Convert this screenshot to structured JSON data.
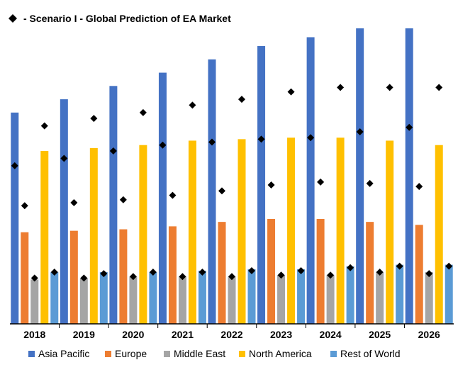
{
  "chart_data": {
    "type": "bar",
    "title": "- Scenario I - Global Prediction of EA Market",
    "categories": [
      "2018",
      "2019",
      "2020",
      "2021",
      "2022",
      "2023",
      "2024",
      "2025",
      "2026"
    ],
    "ylim": [
      0,
      100
    ],
    "grid": false,
    "legend_position": "bottom",
    "title_marker": "diamond",
    "series": [
      {
        "name": "Asia Pacific",
        "color": "#4472C4",
        "values": [
          71.5,
          76,
          80.5,
          85,
          89.5,
          94,
          97,
          100,
          100
        ]
      },
      {
        "name": "Europe",
        "color": "#ED7D31",
        "values": [
          31,
          31.5,
          32,
          33,
          34.5,
          35.5,
          35.5,
          34.5,
          33.5
        ]
      },
      {
        "name": "Middle East",
        "color": "#A5A5A5",
        "values": [
          15,
          15.5,
          16,
          16,
          16,
          16.5,
          16.5,
          17.5,
          17.5
        ]
      },
      {
        "name": "North America",
        "color": "#FFC000",
        "values": [
          58.5,
          59.5,
          60.5,
          62,
          62.5,
          63,
          63,
          62,
          60.5
        ]
      },
      {
        "name": "Rest of World",
        "color": "#5B9BD5",
        "values": [
          17.5,
          17.5,
          17.5,
          18,
          18.5,
          18.5,
          19.5,
          20,
          20
        ]
      }
    ],
    "markers": {
      "shape": "diamond",
      "color": "#000000",
      "values": [
        [
          53.5,
          40,
          15.5,
          67,
          17.5
        ],
        [
          56,
          41,
          15.5,
          69.5,
          17
        ],
        [
          58.5,
          42,
          16,
          71.5,
          17.5
        ],
        [
          60.5,
          43.5,
          16,
          74,
          17.5
        ],
        [
          61.5,
          45,
          16,
          76,
          18
        ],
        [
          62.5,
          47,
          16.5,
          78.5,
          18
        ],
        [
          63,
          48,
          16.5,
          80,
          19
        ],
        [
          65,
          47.5,
          17.5,
          80,
          19.5
        ],
        [
          66.5,
          46.5,
          17,
          80,
          19.5
        ]
      ]
    }
  }
}
